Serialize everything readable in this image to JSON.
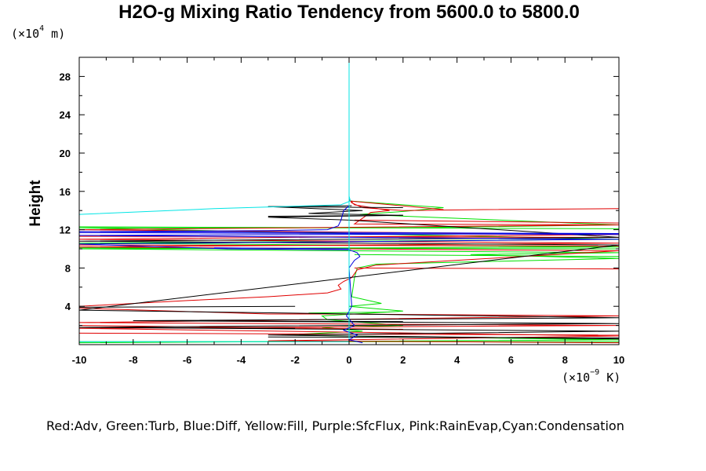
{
  "chart_data": {
    "type": "line",
    "title": "H2O-g Mixing Ratio Tendency from 5600.0 to 5800.0",
    "ylabel": "Height",
    "yunit_prefix": "(×10",
    "yunit_exp": "4",
    "yunit_suffix": " m)",
    "xunit_prefix": "(×10",
    "xunit_exp": "−9",
    "xunit_suffix": " K)",
    "legend_text": "Red:Adv, Green:Turb, Blue:Diff, Yellow:Fill, Purple:SfcFlux, Pink:RainEvap,Cyan:Condensation",
    "xlim": [
      -10,
      10
    ],
    "ylim": [
      0,
      30
    ],
    "xticks": [
      -10,
      -8,
      -6,
      -4,
      -2,
      0,
      2,
      4,
      6,
      8,
      10
    ],
    "xtick_labels": [
      "-10",
      "-8",
      "-6",
      "-4",
      "-2",
      "0",
      "2",
      "4",
      "6",
      "8",
      "10"
    ],
    "yticks": [
      4,
      8,
      12,
      16,
      20,
      24,
      28
    ],
    "ytick_labels": [
      "4",
      "8",
      "12",
      "16",
      "20",
      "24",
      "28"
    ],
    "grid": false,
    "series": [
      {
        "name": "Condensation",
        "color": "#00e5e5",
        "points": [
          [
            0,
            30
          ],
          [
            0,
            15.5
          ],
          [
            0.05,
            15
          ],
          [
            -0.3,
            14.6
          ],
          [
            -5,
            14.2
          ],
          [
            -10,
            13.6
          ],
          [
            -10,
            0.3
          ],
          [
            0,
            0.3
          ]
        ],
        "vertical_core": [
          [
            0,
            30
          ],
          [
            0,
            0.2
          ]
        ]
      },
      {
        "name": "Adv",
        "color": "#e00000",
        "points": [
          [
            10,
            14.2
          ],
          [
            5,
            14.1
          ],
          [
            2,
            14.0
          ],
          [
            0.5,
            14.3
          ],
          [
            0.1,
            14.8
          ],
          [
            0,
            15.2
          ],
          [
            0.2,
            14.6
          ],
          [
            1.5,
            14.0
          ],
          [
            0.8,
            13.8
          ],
          [
            0.2,
            12.6
          ],
          [
            10,
            12.5
          ],
          [
            -10,
            12.0
          ],
          [
            10,
            11.5
          ],
          [
            -10,
            11.0
          ],
          [
            10,
            10.6
          ],
          [
            -10,
            10.2
          ],
          [
            10,
            9.8
          ],
          [
            1.0,
            8.3
          ],
          [
            0.3,
            7.8
          ],
          [
            0.1,
            7.0
          ],
          [
            -0.2,
            6.6
          ],
          [
            -0.4,
            6.2
          ],
          [
            -0.3,
            5.8
          ],
          [
            -0.8,
            5.4
          ],
          [
            -3,
            5.0
          ],
          [
            -6,
            4.6
          ],
          [
            -10,
            4.0
          ],
          [
            -10,
            3.8
          ],
          [
            -3,
            3.2
          ],
          [
            -0.5,
            3.2
          ],
          [
            10,
            3.0
          ],
          [
            -10,
            2.3
          ],
          [
            10,
            2.0
          ],
          [
            -10,
            1.7
          ],
          [
            10,
            0.9
          ],
          [
            -3,
            0.4
          ],
          [
            10,
            0.2
          ]
        ],
        "segments": [
          [
            [
              0,
              15.0
            ],
            [
              3.5,
              14.1
            ]
          ],
          [
            [
              0.2,
              13.0
            ],
            [
              10,
              12.7
            ]
          ],
          [
            [
              -10,
              11.3
            ],
            [
              10,
              11.2
            ]
          ],
          [
            [
              -10,
              10.4
            ],
            [
              10,
              10.3
            ]
          ],
          [
            [
              0.2,
              8.0
            ],
            [
              10,
              7.9
            ]
          ],
          [
            [
              -10,
              2.0
            ],
            [
              2.0,
              1.6
            ]
          ],
          [
            [
              -10,
              1.2
            ],
            [
              10,
              1.0
            ]
          ]
        ]
      },
      {
        "name": "Turb",
        "color": "#00e000",
        "points": [
          [
            0,
            15.0
          ],
          [
            3.5,
            14.3
          ],
          [
            2,
            13.9
          ],
          [
            0.4,
            13.6
          ],
          [
            10,
            12.5
          ],
          [
            2,
            12.2
          ],
          [
            -10,
            12.2
          ],
          [
            10,
            11.0
          ],
          [
            -10,
            10.6
          ],
          [
            10,
            10.2
          ],
          [
            -10,
            10.0
          ],
          [
            10,
            9.6
          ],
          [
            4.5,
            9.4
          ],
          [
            10,
            9.0
          ],
          [
            1,
            8.4
          ],
          [
            0.3,
            8.0
          ],
          [
            0.2,
            7.0
          ],
          [
            0.1,
            5.0
          ],
          [
            1.2,
            4.3
          ],
          [
            0,
            4.0
          ],
          [
            2.0,
            3.5
          ],
          [
            -1,
            3.0
          ],
          [
            -0.8,
            2.6
          ],
          [
            2,
            2.0
          ],
          [
            -1,
            1.8
          ],
          [
            0.5,
            1.4
          ],
          [
            -2.5,
            1.0
          ],
          [
            10,
            0.5
          ],
          [
            -10,
            0.2
          ]
        ],
        "segments": [
          [
            [
              -10,
              12.3
            ],
            [
              10,
              12.1
            ]
          ],
          [
            [
              -10,
              10.1
            ],
            [
              10,
              10.0
            ]
          ],
          [
            [
              0.2,
              9.4
            ],
            [
              10,
              9.2
            ]
          ],
          [
            [
              -1.5,
              3.3
            ],
            [
              1.5,
              3.4
            ]
          ],
          [
            [
              -10,
              0.3
            ],
            [
              10,
              0.3
            ]
          ]
        ]
      },
      {
        "name": "Diff",
        "color": "#0000e0",
        "points": [
          [
            0,
            15.0
          ],
          [
            0,
            14.5
          ],
          [
            -0.2,
            14.0
          ],
          [
            -0.3,
            13.0
          ],
          [
            -0.4,
            12.4
          ],
          [
            -0.8,
            12.0
          ],
          [
            -3,
            11.9
          ],
          [
            -10,
            11.8
          ],
          [
            10,
            11.6
          ],
          [
            -10,
            11.4
          ],
          [
            10,
            11.0
          ],
          [
            -10,
            10.5
          ],
          [
            -4.5,
            10.0
          ],
          [
            0,
            9.9
          ],
          [
            0.3,
            9.6
          ],
          [
            0.4,
            9.2
          ],
          [
            0.2,
            8.8
          ],
          [
            0.1,
            8.4
          ],
          [
            0,
            8.0
          ],
          [
            0.05,
            6.0
          ],
          [
            0.1,
            4.0
          ],
          [
            -0.1,
            3.0
          ],
          [
            0.2,
            2.0
          ],
          [
            -0.2,
            1.5
          ],
          [
            0.3,
            1.0
          ],
          [
            0,
            0.5
          ],
          [
            0.5,
            0.2
          ]
        ],
        "segments": [
          [
            [
              -10,
              11.7
            ],
            [
              10,
              11.5
            ]
          ],
          [
            [
              -5,
              10.1
            ],
            [
              0,
              10.0
            ]
          ]
        ]
      },
      {
        "name": "Fill",
        "color": "#000000",
        "points": [
          [
            0.1,
            14.5
          ],
          [
            -3,
            14.4
          ],
          [
            0.5,
            14.0
          ],
          [
            -1.5,
            13.7
          ],
          [
            2,
            13.5
          ],
          [
            -3,
            13.3
          ],
          [
            0,
            13.0
          ],
          [
            10,
            11.2
          ],
          [
            -10,
            10.8
          ],
          [
            10,
            10.4
          ],
          [
            -10,
            3.6
          ],
          [
            10,
            2.8
          ],
          [
            -8,
            2.5
          ],
          [
            10,
            2.2
          ],
          [
            -10,
            1.8
          ],
          [
            10,
            1.4
          ],
          [
            -3,
            1.0
          ],
          [
            10,
            0.6
          ]
        ],
        "segments": [
          [
            [
              -3,
              14.4
            ],
            [
              2,
              14.3
            ]
          ],
          [
            [
              -3,
              13.4
            ],
            [
              2,
              13.5
            ]
          ],
          [
            [
              -10,
              3.9
            ],
            [
              -2,
              4.0
            ]
          ],
          [
            [
              -8,
              2.5
            ],
            [
              2,
              2.4
            ]
          ],
          [
            [
              -10,
              1.8
            ],
            [
              -2,
              1.7
            ]
          ],
          [
            [
              -3,
              0.8
            ],
            [
              10,
              0.7
            ]
          ]
        ]
      }
    ]
  }
}
